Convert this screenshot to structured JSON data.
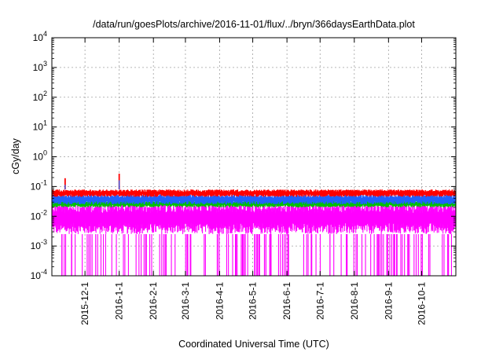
{
  "chart_data": {
    "type": "line",
    "title": "/data/run/goesPlots/archive/2016-11-01/flux/../bryn/366daysEarthData.plot",
    "xlabel": "Coordinated Universal Time (UTC)",
    "ylabel": "cGy/day",
    "yscale": "log",
    "ylim": [
      0.0001,
      10000
    ],
    "xlim": [
      "2015-11-01",
      "2016-11-01"
    ],
    "grid": true,
    "x_ticks": [
      "2015-12-1",
      "2016-1-1",
      "2016-2-1",
      "2016-3-1",
      "2016-4-1",
      "2016-5-1",
      "2016-6-1",
      "2016-7-1",
      "2016-8-1",
      "2016-9-1",
      "2016-10-1"
    ],
    "y_ticks": [
      {
        "value": 0.0001,
        "base": "10",
        "exp": "-4"
      },
      {
        "value": 0.001,
        "base": "10",
        "exp": "-3"
      },
      {
        "value": 0.01,
        "base": "10",
        "exp": "-2"
      },
      {
        "value": 0.1,
        "base": "10",
        "exp": "-1"
      },
      {
        "value": 1,
        "base": "10",
        "exp": "0"
      },
      {
        "value": 10,
        "base": "10",
        "exp": "1"
      },
      {
        "value": 100,
        "base": "10",
        "exp": "2"
      },
      {
        "value": 1000,
        "base": "10",
        "exp": "3"
      },
      {
        "value": 10000,
        "base": "10",
        "exp": "4"
      }
    ],
    "series": [
      {
        "color": "#ff00ff",
        "band_min": 0.0025,
        "band_max": 0.03,
        "dropouts_to": 0.0001
      },
      {
        "color": "#00c000",
        "band_min": 0.02,
        "band_max": 0.035
      },
      {
        "color": "#2060ff",
        "band_min": 0.025,
        "band_max": 0.055
      },
      {
        "color": "#ff0000",
        "band_min": 0.045,
        "band_max": 0.08,
        "peaks": [
          {
            "x": "2015-11-13",
            "y": 0.19
          },
          {
            "x": "2016-01-01",
            "y": 0.27
          }
        ]
      }
    ]
  }
}
